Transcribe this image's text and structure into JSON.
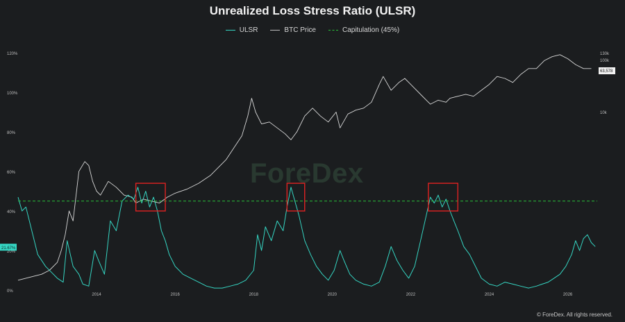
{
  "title": "Unrealized Loss Stress Ratio (ULSR)",
  "watermark": "ForeDex",
  "copyright": "© ForeDex. All rights reserved.",
  "colors": {
    "background": "#1b1d1f",
    "ulsr": "#35d6c3",
    "btc": "#d9d9d9",
    "capitulation": "#29c23a",
    "highlight_box": "#e02222"
  },
  "legend": {
    "ulsr": "ULSR",
    "btc": "BTC Price",
    "capitulation": "Capitulation (45%)"
  },
  "chart_data": {
    "type": "line",
    "title": "Unrealized Loss Stress Ratio (ULSR)",
    "x_range": [
      2012.0,
      2026.75
    ],
    "x_ticks": [
      "2014",
      "2016",
      "2018",
      "2020",
      "2022",
      "2024",
      "2026"
    ],
    "y_left": {
      "ticks": [
        "0%",
        "20%",
        "40%",
        "60%",
        "80%",
        "100%",
        "120%"
      ],
      "range": [
        0,
        120
      ]
    },
    "y_right": {
      "ticks": [
        "10k",
        "100k",
        "130k"
      ],
      "scale": "log"
    },
    "current_labels": {
      "ulsr": "21.67%",
      "btc": "63,578"
    },
    "capitulation_threshold": 45,
    "highlight_periods": [
      {
        "start": 2015.0,
        "end": 2015.75
      },
      {
        "start": 2018.85,
        "end": 2019.3
      },
      {
        "start": 2022.45,
        "end": 2023.2
      }
    ],
    "series": [
      {
        "name": "ULSR",
        "x": [
          2012.0,
          2012.1,
          2012.2,
          2012.35,
          2012.5,
          2012.7,
          2012.9,
          2013.0,
          2013.15,
          2013.25,
          2013.4,
          2013.55,
          2013.65,
          2013.8,
          2013.95,
          2014.05,
          2014.2,
          2014.35,
          2014.5,
          2014.65,
          2014.8,
          2014.95,
          2015.05,
          2015.15,
          2015.25,
          2015.35,
          2015.45,
          2015.55,
          2015.65,
          2015.75,
          2015.85,
          2016.0,
          2016.2,
          2016.4,
          2016.6,
          2016.8,
          2017.0,
          2017.2,
          2017.4,
          2017.6,
          2017.8,
          2018.0,
          2018.1,
          2018.2,
          2018.3,
          2018.45,
          2018.6,
          2018.75,
          2018.85,
          2018.95,
          2019.05,
          2019.15,
          2019.3,
          2019.45,
          2019.6,
          2019.75,
          2019.9,
          2020.05,
          2020.2,
          2020.3,
          2020.45,
          2020.6,
          2020.8,
          2021.0,
          2021.2,
          2021.35,
          2021.5,
          2021.65,
          2021.8,
          2021.95,
          2022.1,
          2022.25,
          2022.4,
          2022.5,
          2022.6,
          2022.7,
          2022.8,
          2022.9,
          2023.0,
          2023.1,
          2023.2,
          2023.35,
          2023.5,
          2023.65,
          2023.8,
          2024.0,
          2024.2,
          2024.4,
          2024.6,
          2024.8,
          2025.0,
          2025.2,
          2025.35,
          2025.5,
          2025.65,
          2025.8,
          2025.95,
          2026.1,
          2026.2,
          2026.3,
          2026.4,
          2026.5,
          2026.6,
          2026.7
        ],
        "values": [
          47,
          40,
          42,
          30,
          18,
          12,
          8,
          6,
          4,
          25,
          12,
          8,
          3,
          2,
          20,
          15,
          8,
          35,
          30,
          45,
          48,
          46,
          52,
          44,
          50,
          42,
          47,
          40,
          30,
          25,
          18,
          12,
          8,
          6,
          4,
          2,
          1,
          1,
          2,
          3,
          5,
          10,
          28,
          20,
          32,
          25,
          35,
          30,
          42,
          52,
          45,
          38,
          25,
          18,
          12,
          8,
          5,
          10,
          20,
          15,
          8,
          5,
          3,
          2,
          4,
          12,
          22,
          15,
          10,
          6,
          12,
          25,
          38,
          47,
          44,
          48,
          42,
          46,
          40,
          35,
          30,
          22,
          18,
          12,
          6,
          3,
          2,
          4,
          3,
          2,
          1,
          2,
          3,
          4,
          6,
          8,
          12,
          18,
          25,
          20,
          26,
          28,
          24,
          22
        ]
      },
      {
        "name": "BTC Price",
        "x": [
          2012.0,
          2012.2,
          2012.4,
          2012.6,
          2012.8,
          2013.0,
          2013.1,
          2013.2,
          2013.3,
          2013.4,
          2013.55,
          2013.7,
          2013.8,
          2013.9,
          2014.0,
          2014.1,
          2014.3,
          2014.5,
          2014.7,
          2014.9,
          2015.0,
          2015.2,
          2015.4,
          2015.6,
          2015.8,
          2016.0,
          2016.3,
          2016.6,
          2016.9,
          2017.1,
          2017.3,
          2017.5,
          2017.7,
          2017.85,
          2017.95,
          2018.05,
          2018.2,
          2018.4,
          2018.6,
          2018.8,
          2018.95,
          2019.1,
          2019.3,
          2019.5,
          2019.7,
          2019.9,
          2020.1,
          2020.2,
          2020.4,
          2020.6,
          2020.8,
          2021.0,
          2021.2,
          2021.3,
          2021.5,
          2021.7,
          2021.85,
          2022.0,
          2022.2,
          2022.4,
          2022.5,
          2022.7,
          2022.9,
          2023.0,
          2023.2,
          2023.4,
          2023.6,
          2023.8,
          2024.0,
          2024.2,
          2024.4,
          2024.6,
          2024.8,
          2025.0,
          2025.2,
          2025.4,
          2025.6,
          2025.8,
          2026.0,
          2026.2,
          2026.4,
          2026.6
        ],
        "values": [
          5,
          6,
          7,
          8,
          10,
          14,
          20,
          28,
          40,
          35,
          60,
          65,
          63,
          55,
          50,
          48,
          55,
          52,
          48,
          47,
          44,
          46,
          45,
          44,
          47,
          49,
          51,
          54,
          58,
          62,
          66,
          72,
          78,
          88,
          97,
          90,
          84,
          85,
          82,
          79,
          76,
          80,
          88,
          92,
          88,
          85,
          90,
          82,
          89,
          91,
          92,
          95,
          104,
          108,
          101,
          105,
          107,
          104,
          100,
          96,
          94,
          96,
          95,
          97,
          98,
          99,
          98,
          101,
          104,
          108,
          107,
          105,
          109,
          112,
          112,
          116,
          118,
          119,
          117,
          114,
          112,
          112
        ]
      }
    ]
  }
}
